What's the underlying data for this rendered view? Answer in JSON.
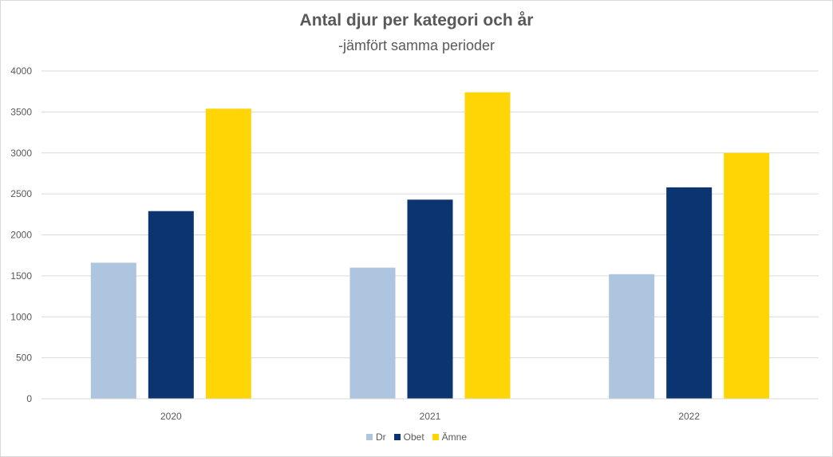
{
  "chart_data": {
    "type": "bar",
    "title": "Antal djur per kategori och år",
    "subtitle": "-jämfört samma perioder",
    "categories": [
      "2020",
      "2021",
      "2022"
    ],
    "series": [
      {
        "name": "Dr",
        "color": "#adc5de",
        "values": [
          1660,
          1600,
          1520
        ]
      },
      {
        "name": "Obet",
        "color": "#0b3470",
        "values": [
          2290,
          2430,
          2580
        ]
      },
      {
        "name": "Ämne",
        "color": "#ffd506",
        "values": [
          3540,
          3740,
          3000
        ]
      }
    ],
    "ylim": [
      0,
      4000
    ],
    "yticks": [
      "0",
      "500",
      "1000",
      "1500",
      "2000",
      "2500",
      "3000",
      "3500",
      "4000"
    ],
    "grid": true,
    "legend_position": "bottom"
  }
}
